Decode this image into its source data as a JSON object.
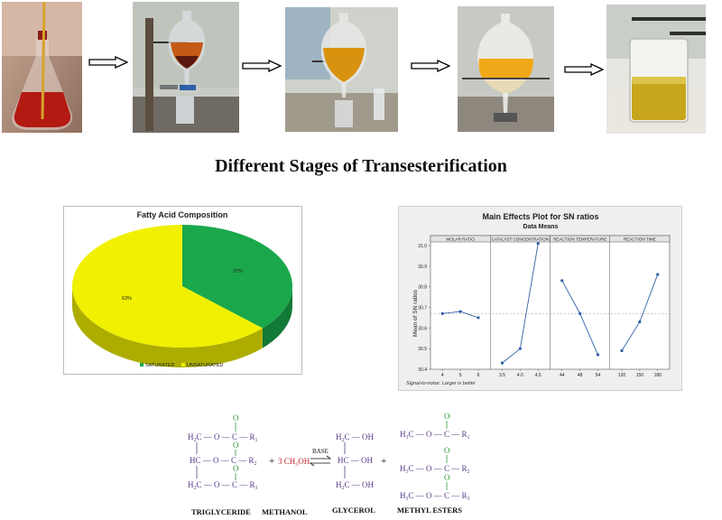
{
  "photos": [
    {
      "name": "flask-photo"
    },
    {
      "name": "separating-funnel-stand-photo"
    },
    {
      "name": "funnel-settling-photo"
    },
    {
      "name": "funnel-layer-separation-photo"
    },
    {
      "name": "biodiesel-beaker-photo"
    }
  ],
  "caption": "Different Stages of Transesterification",
  "chart_data": [
    {
      "type": "pie",
      "title": "Fatty Acid Composition",
      "slices": [
        {
          "name": "SATURATED",
          "value": 37,
          "label": "37%",
          "color": "#1aa84b"
        },
        {
          "name": "UNSATURATED",
          "value": 63,
          "label": "63%",
          "color": "#f0f000"
        }
      ],
      "legend_position": "bottom",
      "legend": [
        "SATURATED",
        "UNSATURATED"
      ]
    },
    {
      "type": "line",
      "title": "Main Effects Plot for SN ratios",
      "subtitle": "Data Means",
      "ylabel": "Mean of SN ratios",
      "ylim": [
        30.4,
        31.0
      ],
      "yticks": [
        "31.0",
        "30.9",
        "30.8",
        "30.7",
        "30.6",
        "30.5",
        "30.4"
      ],
      "reference_line": 30.67,
      "footnote": "Signal-to-noise: Larger is better",
      "panels": [
        {
          "name": "MOLAR RATIO",
          "x": [
            "4",
            "5",
            "6"
          ],
          "values": [
            30.67,
            30.68,
            30.65
          ]
        },
        {
          "name": "CATALYST CONCENTRATION",
          "x": [
            "3.5",
            "4.0",
            "4.5"
          ],
          "values": [
            30.43,
            30.5,
            31.01
          ]
        },
        {
          "name": "REACTION TEMPERATURE",
          "x": [
            "44",
            "48",
            "54"
          ],
          "values": [
            30.83,
            30.67,
            30.47
          ]
        },
        {
          "name": "REACTION TIME",
          "x": [
            "120",
            "150",
            "180"
          ],
          "values": [
            30.49,
            30.63,
            30.86
          ]
        }
      ]
    }
  ],
  "reaction": {
    "tg_row1_a": "H",
    "tg_row1_b": "2",
    "tg_row1_c": "C — O — C — R",
    "tg_row1_d": "1",
    "tg_row2_a": "HC — O — C — R",
    "tg_row2_b": "2",
    "tg_row3_a": "H",
    "tg_row3_b": "2",
    "tg_row3_c": "C — O — C — R",
    "tg_row3_d": "3",
    "plus": "+",
    "methanol": "3 CH",
    "methanol_sub": "3",
    "methanol_end": "OH",
    "catalyst": "BASE",
    "gly_row1_a": "H",
    "gly_row1_b": "2",
    "gly_row1_c": "C — OH",
    "gly_row2": "HC — OH",
    "gly_row3_a": "H",
    "gly_row3_b": "2",
    "gly_row3_c": "C — OH",
    "me_row1_a": "H",
    "me_row1_b": "3",
    "me_row1_c": "C — O — C — R",
    "me_row1_d": "1",
    "me_row2_a": "H",
    "me_row2_b": "3",
    "me_row2_c": "C — O — C — R",
    "me_row2_d": "2",
    "me_row3_a": "H",
    "me_row3_b": "3",
    "me_row3_c": "C — O — C — R",
    "me_row3_d": "3",
    "carbonyl_o": "O",
    "label_tg": "TRIGLYCERIDE",
    "label_methanol": "METHANOL",
    "label_glycerol": "GLYCEROL",
    "label_esters": "METHYL ESTERS"
  }
}
